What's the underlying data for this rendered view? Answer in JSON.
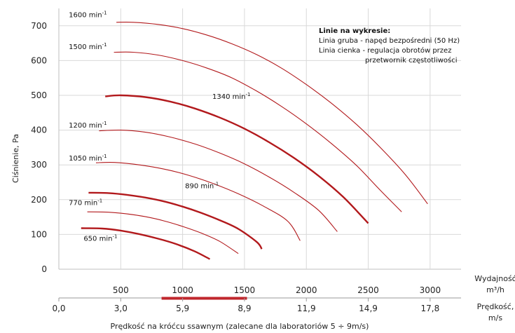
{
  "chart_data": {
    "type": "line",
    "ylabel": "Ciśnienie, Pa",
    "x_flow_label": [
      "Wydajność",
      "m³/h"
    ],
    "x_speed_label": [
      "Prędkość,",
      "m/s"
    ],
    "x_caption": "Prędkość na króćcu ssawnym (zalecane dla laboratoriów 5 ÷ 9m/s)",
    "xlim": [
      0,
      3250
    ],
    "ylim": [
      0,
      750
    ],
    "yticks": [
      0,
      100,
      200,
      300,
      400,
      500,
      600,
      700
    ],
    "flow_ticks": [
      500,
      1000,
      1500,
      2000,
      2500,
      3000
    ],
    "speed_ticks": [
      {
        "flow": 0,
        "label": "0,0"
      },
      {
        "flow": 500,
        "label": "3,0"
      },
      {
        "flow": 1000,
        "label": "5,9"
      },
      {
        "flow": 1500,
        "label": "8,9"
      },
      {
        "flow": 2000,
        "label": "11,9"
      },
      {
        "flow": 2500,
        "label": "14,9"
      },
      {
        "flow": 3000,
        "label": "17,8"
      }
    ],
    "recommended_speed_range": {
      "flow_from": 830,
      "flow_to": 1520,
      "color": "#c0272d"
    },
    "legend": {
      "title": "Linie na wykresie:",
      "lines": [
        "Linia gruba - napęd bezpośredni (50 Hz)",
        "Linia cienka - regulacja obrotów przez",
        "przetwornik częstotliwości"
      ]
    },
    "series": [
      {
        "name": "1600 min⁻¹",
        "thick": false,
        "label_pos": [
          80,
          725
        ],
        "x": [
          465,
          600,
          800,
          1000,
          1200,
          1400,
          1600,
          1800,
          2000,
          2200,
          2400,
          2600,
          2800,
          2980
        ],
        "y": [
          710,
          710,
          704,
          692,
          673,
          648,
          617,
          578,
          531,
          478,
          418,
          349,
          272,
          188
        ]
      },
      {
        "name": "1500 min⁻¹",
        "thick": false,
        "label_pos": [
          80,
          633
        ],
        "x": [
          445,
          600,
          800,
          1000,
          1200,
          1400,
          1600,
          1800,
          2000,
          2200,
          2400,
          2600,
          2770
        ],
        "y": [
          624,
          624,
          616,
          600,
          578,
          550,
          512,
          468,
          418,
          362,
          300,
          226,
          165
        ]
      },
      {
        "name": "1340 min⁻¹",
        "thick": true,
        "label_pos": [
          1240,
          490
        ],
        "x": [
          375,
          500,
          700,
          900,
          1100,
          1300,
          1500,
          1700,
          1900,
          2100,
          2300,
          2500
        ],
        "y": [
          497,
          500,
          495,
          482,
          462,
          436,
          404,
          365,
          320,
          268,
          207,
          132
        ]
      },
      {
        "name": "1200 min⁻¹",
        "thick": false,
        "label_pos": [
          80,
          407
        ],
        "x": [
          325,
          500,
          700,
          900,
          1100,
          1300,
          1500,
          1700,
          1900,
          2100,
          2250
        ],
        "y": [
          398,
          400,
          394,
          380,
          360,
          334,
          303,
          265,
          221,
          169,
          108
        ]
      },
      {
        "name": "1050 min⁻¹",
        "thick": false,
        "label_pos": [
          80,
          312
        ],
        "x": [
          300,
          450,
          650,
          850,
          1050,
          1250,
          1450,
          1650,
          1850,
          1950
        ],
        "y": [
          306,
          307,
          300,
          288,
          270,
          246,
          217,
          182,
          138,
          82
        ]
      },
      {
        "name": "890 min⁻¹",
        "thick": true,
        "label_pos": [
          1020,
          233
        ],
        "x": [
          240,
          400,
          550,
          700,
          850,
          1000,
          1150,
          1300,
          1450,
          1600,
          1640
        ],
        "y": [
          220,
          219,
          214,
          206,
          195,
          180,
          162,
          141,
          116,
          78,
          58
        ]
      },
      {
        "name": "770 min⁻¹",
        "thick": false,
        "label_pos": [
          80,
          184
        ],
        "x": [
          230,
          400,
          550,
          700,
          850,
          1000,
          1150,
          1300,
          1450
        ],
        "y": [
          165,
          164,
          159,
          151,
          139,
          123,
          104,
          80,
          45
        ]
      },
      {
        "name": "650 min⁻¹",
        "thick": true,
        "label_pos": [
          200,
          82
        ],
        "x": [
          180,
          350,
          500,
          650,
          800,
          950,
          1100,
          1220
        ],
        "y": [
          118,
          117,
          111,
          101,
          88,
          72,
          51,
          29
        ]
      }
    ]
  }
}
